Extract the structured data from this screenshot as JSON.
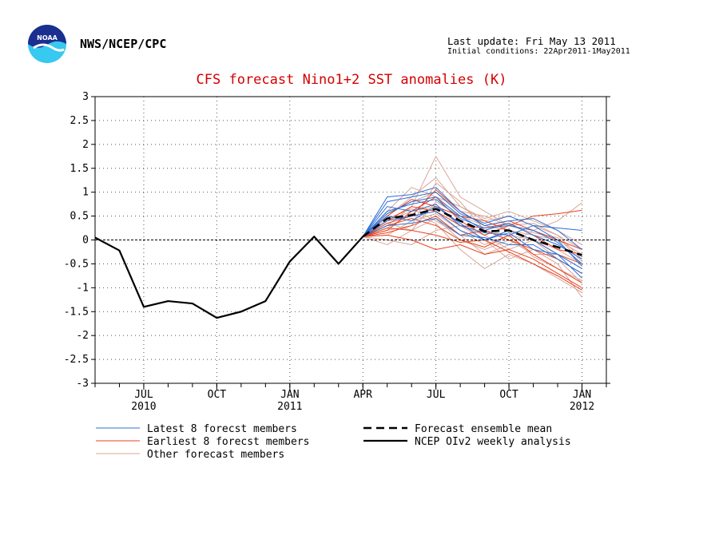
{
  "header": {
    "org": "NWS/NCEP/CPC",
    "last_update": "Last update: Fri May 13 2011",
    "initial_conditions": "Initial conditions: 22Apr2011-1May2011",
    "logo_text": "NOAA"
  },
  "colors": {
    "latest": "#2b6fd6",
    "earliest": "#e8401c",
    "other": "#d9a69a",
    "mean": "#000000",
    "analysis": "#000000",
    "title": "#d40000"
  },
  "chart_data": {
    "type": "line",
    "title": "CFS forecast Nino1+2 SST anomalies (K)",
    "xlabel": "",
    "ylabel": "",
    "ylim": [
      -3,
      3
    ],
    "yticks": [
      -3,
      -2.5,
      -2,
      -1.5,
      -1,
      -0.5,
      0,
      0.5,
      1,
      1.5,
      2,
      2.5,
      3
    ],
    "ytick_labels": [
      "-3",
      "-2.5",
      "-2",
      "-1.5",
      "-1",
      "-0.5",
      "0",
      "0.5",
      "1",
      "1.5",
      "2",
      "2.5",
      "3"
    ],
    "x_units": "months since May 2010",
    "xlim": [
      0,
      21
    ],
    "xticks": [
      {
        "x": 2,
        "label": "JUL",
        "year": "2010"
      },
      {
        "x": 5,
        "label": "OCT",
        "year": ""
      },
      {
        "x": 8,
        "label": "JAN",
        "year": "2011"
      },
      {
        "x": 11,
        "label": "APR",
        "year": ""
      },
      {
        "x": 14,
        "label": "JUL",
        "year": ""
      },
      {
        "x": 17,
        "label": "OCT",
        "year": ""
      },
      {
        "x": 20,
        "label": "JAN",
        "year": "2012"
      }
    ],
    "grid": true,
    "zero_line": true,
    "analysis": {
      "name": "NCEP OIv2 weekly analysis",
      "x": [
        0,
        1,
        2,
        3,
        4,
        5,
        6,
        7,
        8,
        9,
        10,
        11
      ],
      "y": [
        0.05,
        -0.22,
        -1.4,
        -1.28,
        -1.33,
        -1.63,
        -1.5,
        -1.28,
        -0.45,
        0.07,
        -0.5,
        0.07
      ]
    },
    "ensemble_mean": {
      "name": "Forecast ensemble mean",
      "x": [
        11,
        12,
        13,
        14,
        15,
        16,
        17,
        18,
        19,
        20
      ],
      "y": [
        0.07,
        0.45,
        0.52,
        0.65,
        0.4,
        0.18,
        0.2,
        0.0,
        -0.15,
        -0.32
      ]
    },
    "members": {
      "latest": [
        [
          0.07,
          0.9,
          0.95,
          1.1,
          0.6,
          0.3,
          0.4,
          0.45,
          0.2,
          -0.2
        ],
        [
          0.07,
          0.55,
          0.8,
          0.9,
          0.5,
          0.2,
          0.35,
          0.1,
          -0.1,
          -0.4
        ],
        [
          0.07,
          0.7,
          0.6,
          0.75,
          0.3,
          0.15,
          0.1,
          0.3,
          0.0,
          -0.55
        ],
        [
          0.07,
          0.4,
          0.5,
          0.6,
          0.2,
          0.0,
          0.2,
          0.0,
          -0.3,
          -0.6
        ],
        [
          0.07,
          0.8,
          0.9,
          1.0,
          0.55,
          0.35,
          0.5,
          0.3,
          0.25,
          0.2
        ],
        [
          0.07,
          0.3,
          0.35,
          0.45,
          0.1,
          0.05,
          -0.1,
          -0.1,
          -0.4,
          -0.7
        ],
        [
          0.07,
          0.6,
          0.75,
          0.85,
          0.45,
          0.25,
          0.3,
          0.2,
          -0.05,
          -0.5
        ],
        [
          0.07,
          0.5,
          0.4,
          0.7,
          0.35,
          0.0,
          0.15,
          -0.2,
          -0.3,
          -0.8
        ]
      ],
      "earliest": [
        [
          0.07,
          0.2,
          0.6,
          0.9,
          0.4,
          0.1,
          0.3,
          0.5,
          0.55,
          0.62
        ],
        [
          0.07,
          0.35,
          0.5,
          1.05,
          0.6,
          0.3,
          0.4,
          0.2,
          0.0,
          -0.2
        ],
        [
          0.07,
          0.1,
          0.0,
          -0.2,
          -0.1,
          -0.3,
          -0.2,
          -0.4,
          -0.7,
          -1.0
        ],
        [
          0.07,
          0.3,
          0.45,
          0.3,
          0.0,
          -0.15,
          0.1,
          -0.3,
          -0.6,
          -0.9
        ],
        [
          0.07,
          0.5,
          0.85,
          0.7,
          0.5,
          0.4,
          0.2,
          0.0,
          -0.3,
          -0.5
        ],
        [
          0.07,
          0.15,
          0.3,
          0.5,
          0.1,
          0.2,
          0.0,
          -0.2,
          -0.4,
          -0.7
        ],
        [
          0.07,
          0.4,
          0.7,
          0.6,
          0.3,
          0.25,
          0.35,
          0.1,
          -0.2,
          -0.3
        ],
        [
          0.07,
          0.25,
          0.2,
          0.1,
          -0.05,
          0.0,
          -0.25,
          -0.5,
          -0.75,
          -1.05
        ]
      ],
      "other": [
        [
          0.07,
          0.3,
          0.7,
          1.75,
          0.9,
          0.6,
          0.3,
          0.35,
          0.1,
          -0.4
        ],
        [
          0.07,
          0.2,
          0.3,
          1.2,
          0.8,
          0.2,
          0.1,
          0.0,
          -0.4,
          -0.9
        ],
        [
          0.07,
          0.0,
          -0.1,
          0.2,
          0.3,
          0.0,
          -0.4,
          -0.2,
          -0.5,
          -1.2
        ],
        [
          0.07,
          0.45,
          0.65,
          0.4,
          0.1,
          -0.3,
          -0.1,
          0.2,
          0.4,
          0.78
        ],
        [
          0.07,
          0.6,
          1.1,
          0.9,
          0.7,
          0.45,
          0.6,
          0.4,
          0.2,
          -0.1
        ],
        [
          0.07,
          0.1,
          0.4,
          0.55,
          0.2,
          -0.1,
          0.1,
          -0.35,
          -0.6,
          -0.85
        ],
        [
          0.07,
          0.35,
          0.2,
          0.8,
          0.5,
          0.3,
          0.2,
          0.1,
          0.0,
          -0.3
        ],
        [
          0.07,
          0.5,
          0.9,
          1.3,
          0.7,
          0.4,
          0.5,
          0.3,
          0.1,
          -0.2
        ],
        [
          0.07,
          0.25,
          0.55,
          0.35,
          -0.2,
          -0.6,
          -0.3,
          -0.5,
          -0.8,
          -1.1
        ],
        [
          0.07,
          0.4,
          0.6,
          0.7,
          0.3,
          0.1,
          -0.2,
          0.0,
          -0.2,
          -0.5
        ],
        [
          0.07,
          -0.1,
          0.2,
          0.45,
          0.0,
          -0.2,
          0.0,
          -0.3,
          -0.3,
          -0.6
        ],
        [
          0.07,
          0.55,
          0.8,
          1.0,
          0.6,
          0.5,
          0.3,
          0.15,
          0.05,
          -0.45
        ]
      ]
    },
    "legend": {
      "placement": "bottom",
      "items": [
        {
          "key": "latest",
          "label": "Latest 8 forecst members"
        },
        {
          "key": "earliest",
          "label": "Earliest 8 forecst members"
        },
        {
          "key": "other",
          "label": "Other forecast members"
        },
        {
          "key": "mean",
          "label": "Forecast ensemble mean"
        },
        {
          "key": "analysis",
          "label": "NCEP OIv2 weekly analysis"
        }
      ]
    }
  }
}
